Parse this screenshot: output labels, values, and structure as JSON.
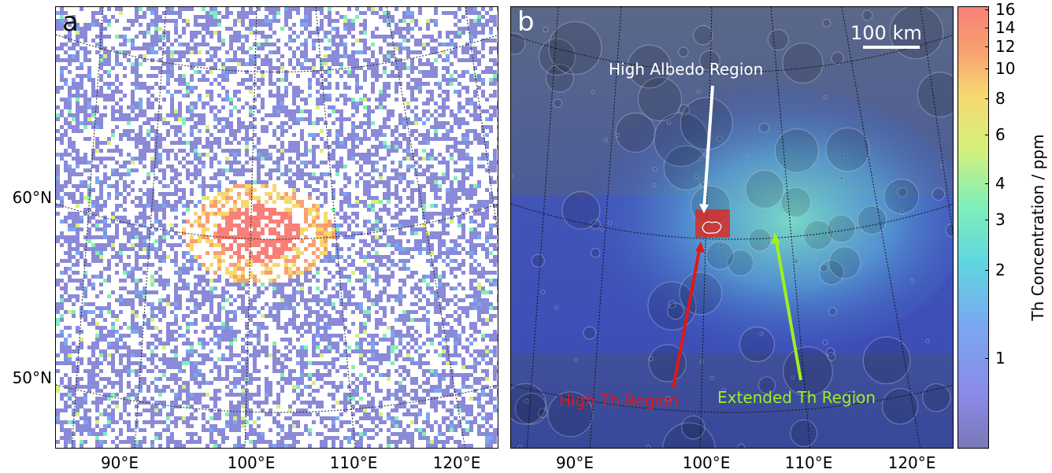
{
  "panels": {
    "a": {
      "letter": "a"
    },
    "b": {
      "letter": "b"
    }
  },
  "axes": {
    "x_ticks": [
      "90°E",
      "100°E",
      "110°E",
      "120°E"
    ],
    "y_ticks": [
      "60°N",
      "50°N"
    ]
  },
  "scalebar": {
    "label": "100 km"
  },
  "annotations": {
    "high_albedo": {
      "text": "High Albedo Region",
      "color": "#ffffff"
    },
    "high_th": {
      "text": "High Th Region",
      "color": "#e01818"
    },
    "extended_th": {
      "text": "Extended Th Region",
      "color": "#9ef020"
    }
  },
  "colorbar": {
    "label": "Th Concentration / ppm",
    "ticks": [
      "16",
      "14",
      "12",
      "10",
      "8",
      "6",
      "4",
      "3",
      "2",
      "1"
    ],
    "colors": {
      "low": "#7a78b8",
      "high": "#f88078"
    }
  }
}
